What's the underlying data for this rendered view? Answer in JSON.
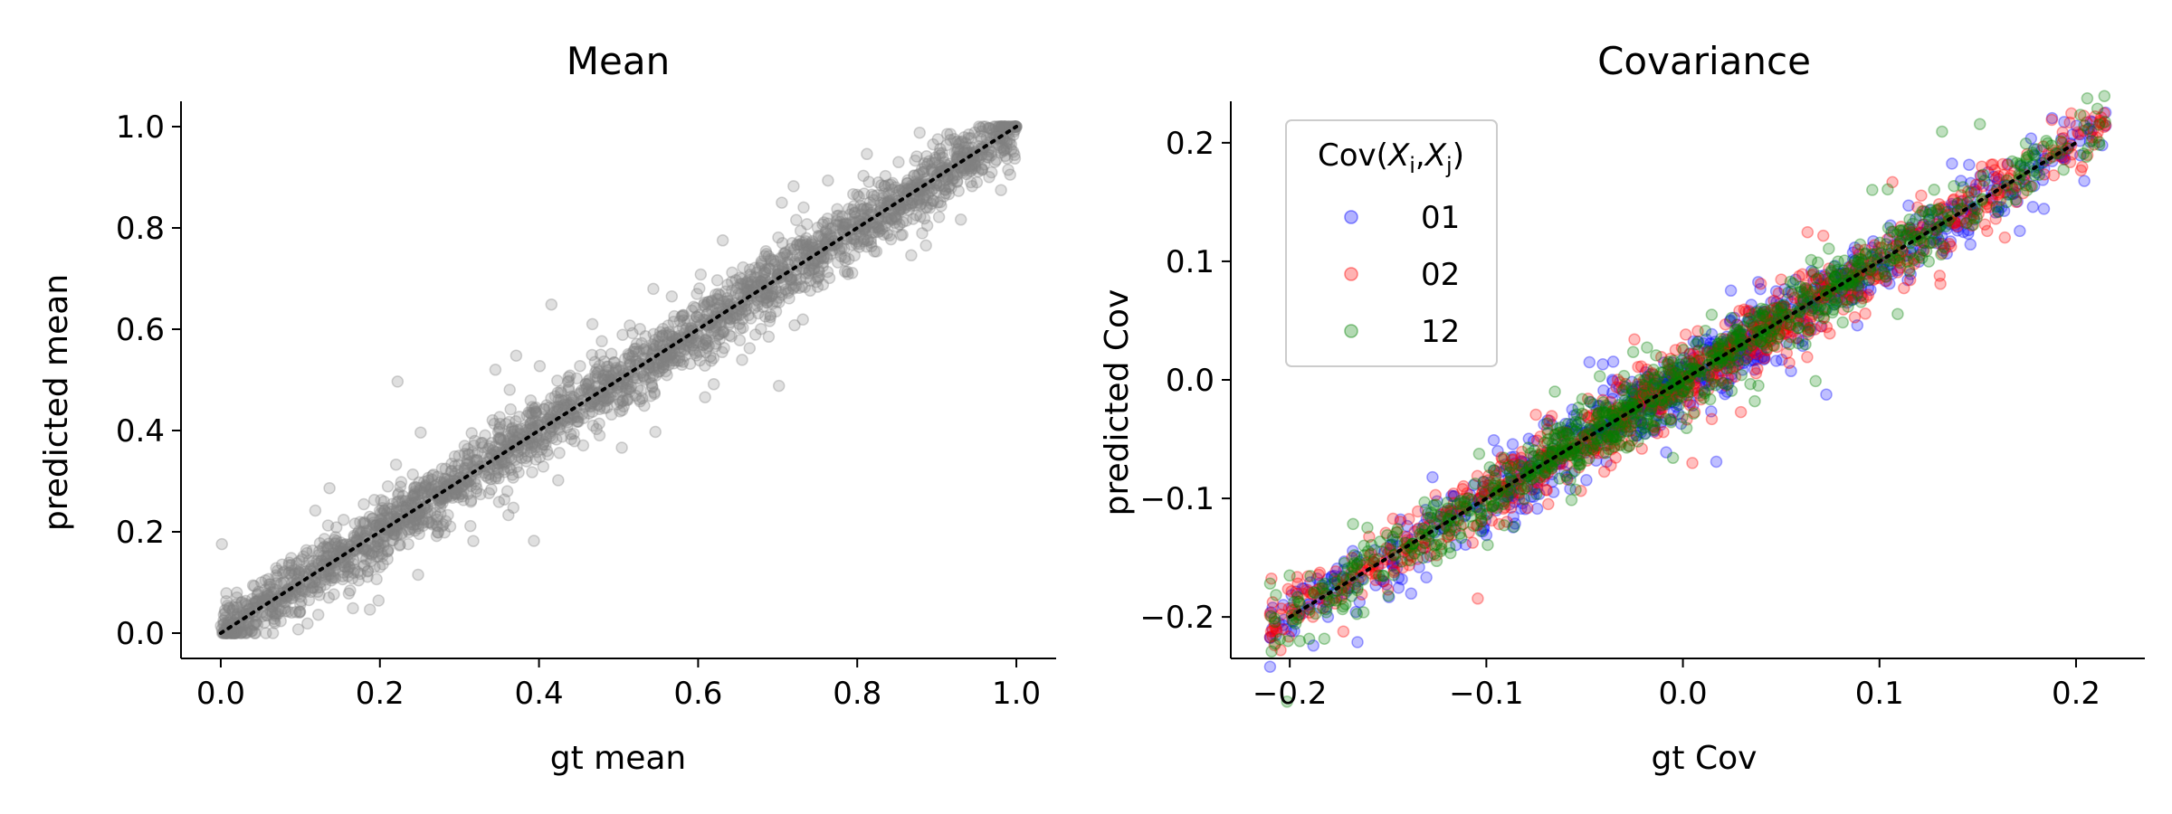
{
  "chart_data": [
    {
      "type": "scatter",
      "title": "Mean",
      "xlabel": "gt mean",
      "ylabel": "predicted mean",
      "xlim": [
        -0.05,
        1.05
      ],
      "ylim": [
        -0.05,
        1.05
      ],
      "xticks": [
        "0.0",
        "0.2",
        "0.4",
        "0.6",
        "0.8",
        "1.0"
      ],
      "yticks": [
        "0.0",
        "0.2",
        "0.4",
        "0.6",
        "0.8",
        "1.0"
      ],
      "grid": false,
      "reference_line": {
        "style": "dotted",
        "color": "#000000",
        "from": [
          0.0,
          0.0
        ],
        "to": [
          1.0,
          1.0
        ]
      },
      "series": [
        {
          "color": "#808080",
          "alpha": 0.25,
          "trend": {
            "x_range": [
              0.0,
              1.0
            ],
            "slope": 1.0,
            "intercept": 0.0,
            "spread": 0.03,
            "outlier_spread": 0.08
          }
        }
      ]
    },
    {
      "type": "scatter",
      "title": "Covariance",
      "xlabel": "gt Cov",
      "ylabel": "predicted Cov",
      "xlim": [
        -0.23,
        0.235
      ],
      "ylim": [
        -0.235,
        0.235
      ],
      "xticks": [
        "−0.2",
        "−0.1",
        "0.0",
        "0.1",
        "0.2"
      ],
      "yticks": [
        "−0.2",
        "−0.1",
        "0.0",
        "0.1",
        "0.2"
      ],
      "grid": false,
      "legend": {
        "title_prefix": "Cov(",
        "title_math": "X_i,X_j",
        "title_suffix": ")",
        "placement": "upper-left"
      },
      "reference_line": {
        "style": "dotted",
        "color": "#000000",
        "from": [
          -0.2,
          -0.2
        ],
        "to": [
          0.2,
          0.2
        ]
      },
      "series": [
        {
          "name": "01",
          "color": "#0000ff",
          "alpha": 0.25,
          "trend": {
            "x_range": [
              -0.21,
              0.215
            ],
            "slope": 1.0,
            "intercept": 0.0,
            "spread": 0.013,
            "outlier_spread": 0.03
          }
        },
        {
          "name": "02",
          "color": "#ff0000",
          "alpha": 0.25,
          "trend": {
            "x_range": [
              -0.21,
              0.215
            ],
            "slope": 1.0,
            "intercept": 0.0,
            "spread": 0.013,
            "outlier_spread": 0.03
          }
        },
        {
          "name": "12",
          "color": "#008000",
          "alpha": 0.25,
          "trend": {
            "x_range": [
              -0.21,
              0.215
            ],
            "slope": 1.0,
            "intercept": 0.0,
            "spread": 0.013,
            "outlier_spread": 0.03
          }
        }
      ]
    }
  ]
}
